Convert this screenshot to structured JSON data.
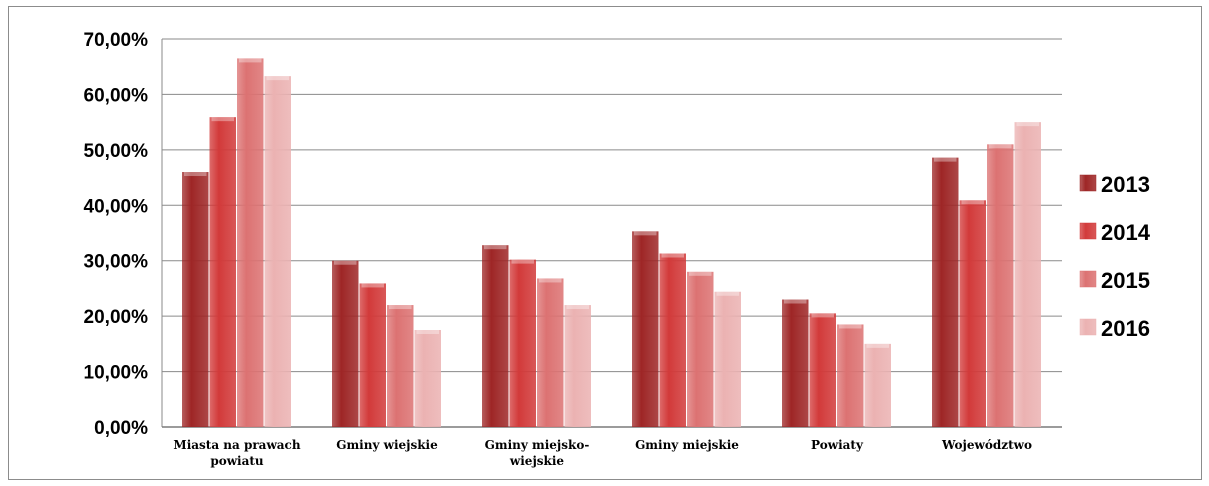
{
  "chart_data": {
    "type": "bar",
    "categories": [
      [
        "Miasta na prawach",
        "powiatu"
      ],
      [
        "Gminy wiejskie"
      ],
      [
        "Gminy miejsko-",
        "wiejskie"
      ],
      [
        "Gminy miejskie"
      ],
      [
        "Powiaty"
      ],
      [
        "Województwo"
      ]
    ],
    "series": [
      {
        "name": "2013",
        "values": [
          46.0,
          30.0,
          32.8,
          35.3,
          23.0,
          48.6
        ]
      },
      {
        "name": "2014",
        "values": [
          55.9,
          25.9,
          30.2,
          31.3,
          20.5,
          40.9
        ]
      },
      {
        "name": "2015",
        "values": [
          66.5,
          22.0,
          26.8,
          28.0,
          18.5,
          51.0
        ]
      },
      {
        "name": "2016",
        "values": [
          63.3,
          17.5,
          22.0,
          24.4,
          15.0,
          55.0
        ]
      }
    ],
    "colors": [
      "#9e2626",
      "#d23a3a",
      "#dc7272",
      "#ebb2b2"
    ],
    "ylim": [
      0,
      70
    ],
    "yticks": [
      "0,00%",
      "10,00%",
      "20,00%",
      "30,00%",
      "40,00%",
      "50,00%",
      "60,00%",
      "70,00%"
    ],
    "grid": true,
    "legend_position": "right"
  }
}
